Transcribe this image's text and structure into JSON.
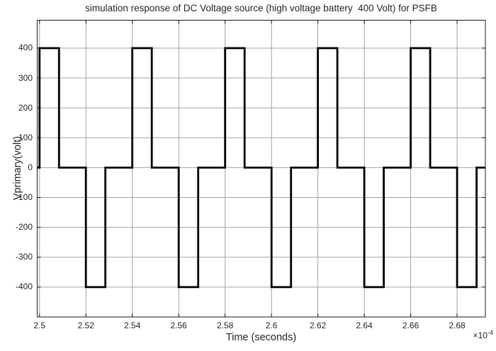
{
  "chart_data": {
    "type": "line",
    "title": "simulation response of DC Voltage source (high voltage battery  400 Volt) for PSFB",
    "xlabel": "Time (seconds)",
    "ylabel": "Vprimary(volt)",
    "x_exponent_prefix": "×10",
    "x_exponent_value": "-4",
    "x_unit_note": "x values in units of 1e-4 seconds",
    "xlim": [
      2.499,
      2.6922
    ],
    "ylim": [
      -500,
      493.5
    ],
    "x_ticks": [
      2.5,
      2.52,
      2.54,
      2.56,
      2.58,
      2.6,
      2.62,
      2.64,
      2.66,
      2.68
    ],
    "x_tick_labels": [
      "2.5",
      "2.52",
      "2.54",
      "2.56",
      "2.58",
      "2.6",
      "2.62",
      "2.64",
      "2.66",
      "2.68"
    ],
    "y_ticks": [
      -400,
      -300,
      -200,
      -100,
      0,
      100,
      200,
      300,
      400
    ],
    "y_tick_labels": [
      "-400",
      "-300",
      "-200",
      "-100",
      "0",
      "100",
      "200",
      "300",
      "400"
    ],
    "grid": true,
    "legend": "none",
    "colors": {
      "line": "#000000",
      "grid": "#a3a3a3",
      "axis_box": "#1a1a1a",
      "text": "#262626",
      "background": "#ffffff"
    },
    "line_width": 2.8,
    "amplitude_volts": 400,
    "period_e4s": 0.04,
    "pulse_width_e4s": 0.0084,
    "series": [
      {
        "name": "Vprimary",
        "points": [
          [
            2.499,
            0
          ],
          [
            2.5,
            0
          ],
          [
            2.5,
            400
          ],
          [
            2.5084,
            400
          ],
          [
            2.5084,
            0
          ],
          [
            2.52,
            0
          ],
          [
            2.52,
            -400
          ],
          [
            2.5284,
            -400
          ],
          [
            2.5284,
            0
          ],
          [
            2.54,
            0
          ],
          [
            2.54,
            400
          ],
          [
            2.5484,
            400
          ],
          [
            2.5484,
            0
          ],
          [
            2.56,
            0
          ],
          [
            2.56,
            -400
          ],
          [
            2.5684,
            -400
          ],
          [
            2.5684,
            0
          ],
          [
            2.58,
            0
          ],
          [
            2.58,
            400
          ],
          [
            2.5884,
            400
          ],
          [
            2.5884,
            0
          ],
          [
            2.6,
            0
          ],
          [
            2.6,
            -400
          ],
          [
            2.6084,
            -400
          ],
          [
            2.6084,
            0
          ],
          [
            2.62,
            0
          ],
          [
            2.62,
            400
          ],
          [
            2.6284,
            400
          ],
          [
            2.6284,
            0
          ],
          [
            2.64,
            0
          ],
          [
            2.64,
            -400
          ],
          [
            2.6484,
            -400
          ],
          [
            2.6484,
            0
          ],
          [
            2.66,
            0
          ],
          [
            2.66,
            400
          ],
          [
            2.6684,
            400
          ],
          [
            2.6684,
            0
          ],
          [
            2.68,
            0
          ],
          [
            2.68,
            -400
          ],
          [
            2.6884,
            -400
          ],
          [
            2.6884,
            0
          ],
          [
            2.6922,
            0
          ]
        ]
      }
    ]
  }
}
